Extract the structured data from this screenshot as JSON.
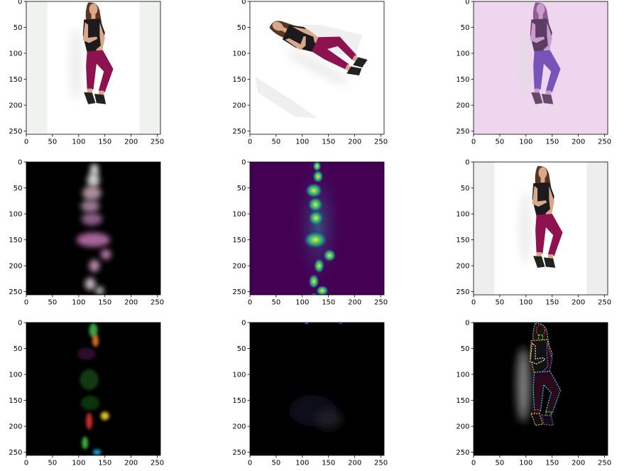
{
  "figure": {
    "rows": 3,
    "cols": 3,
    "panels": [
      {
        "id": "r1c1",
        "kind": "photo-standing",
        "bg": "#ffffff",
        "side": "#f0f2f0"
      },
      {
        "id": "r1c2",
        "kind": "photo-rotated",
        "bg": "#ffffff"
      },
      {
        "id": "r1c3",
        "kind": "photo-tinted",
        "bg": "#efd6ef"
      },
      {
        "id": "r2c1",
        "kind": "heatmap-rgb",
        "bg": "#000000"
      },
      {
        "id": "r2c2",
        "kind": "heatmap-viridis",
        "bg": "#440154"
      },
      {
        "id": "r2c3",
        "kind": "photo-standing-alt",
        "bg": "#ffffff",
        "side": "#eeeeee"
      },
      {
        "id": "r3c1",
        "kind": "dark-colored-parts",
        "bg": "#000000"
      },
      {
        "id": "r3c2",
        "kind": "dark-faint",
        "bg": "#000000"
      },
      {
        "id": "r3c3",
        "kind": "edge-outline",
        "bg": "#000000"
      }
    ]
  },
  "chart_data": {
    "type": "heatmap",
    "subplots": 9,
    "xlim": [
      0,
      256
    ],
    "ylim": [
      256,
      0
    ],
    "x_ticks": [
      0,
      50,
      100,
      150,
      200,
      250
    ],
    "y_ticks": [
      0,
      50,
      100,
      150,
      200,
      250
    ],
    "x_tick_labels": [
      "0",
      "50",
      "100",
      "150",
      "200",
      "250"
    ],
    "y_tick_labels": [
      "0",
      "50",
      "100",
      "150",
      "200",
      "250"
    ]
  },
  "colors": {
    "shirt": "#1c1a1c",
    "pants": "#8e1150",
    "skin": "#d9a88a",
    "hair": "#5a3520",
    "shoe": "#222222"
  }
}
